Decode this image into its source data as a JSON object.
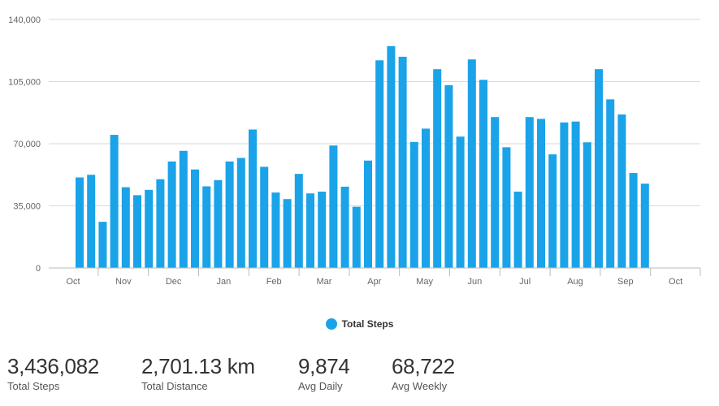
{
  "chart_data": {
    "type": "bar",
    "ylim": [
      0,
      140000
    ],
    "yticks": [
      0,
      35000,
      70000,
      105000,
      140000
    ],
    "ytick_labels": [
      "0",
      "35,000",
      "70,000",
      "105,000",
      "140,000"
    ],
    "month_labels": [
      "Oct",
      "Nov",
      "Dec",
      "Jan",
      "Feb",
      "Mar",
      "Apr",
      "May",
      "Jun",
      "Jul",
      "Aug",
      "Sep",
      "Oct"
    ],
    "grid": true,
    "legend_position": "bottom-center",
    "bar_color": "#1aa3e8",
    "series": [
      {
        "name": "Total Steps",
        "values": [
          51000,
          52500,
          26000,
          75000,
          45500,
          41000,
          44000,
          50000,
          60000,
          66000,
          55500,
          46000,
          49500,
          60000,
          62000,
          78000,
          57000,
          42500,
          38800,
          53000,
          42000,
          43000,
          69000,
          45800,
          34500,
          60500,
          117000,
          125000,
          119000,
          71000,
          78500,
          112000,
          103000,
          74000,
          117500,
          106000,
          85000,
          68000,
          43000,
          85000,
          84000,
          64000,
          82000,
          82500,
          70800,
          112000,
          95000,
          86500,
          53500,
          47500
        ]
      }
    ]
  },
  "legend": {
    "label": "Total Steps",
    "color": "#1aa3e8"
  },
  "stats": [
    {
      "value": "3,436,082",
      "label": "Total Steps"
    },
    {
      "value": "2,701.13 km",
      "label": "Total Distance"
    },
    {
      "value": "9,874",
      "label": "Avg Daily"
    },
    {
      "value": "68,722",
      "label": "Avg Weekly"
    }
  ]
}
